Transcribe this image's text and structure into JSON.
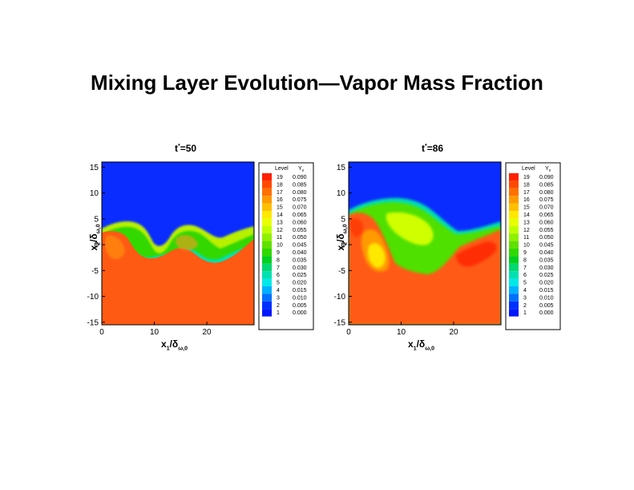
{
  "page_title": "Mixing Layer Evolution—Vapor Mass Fraction",
  "chart_data": [
    {
      "type": "heatmap",
      "title_main": "t",
      "title_sup": "*",
      "title_rest": "=50",
      "ylabel_main": "x",
      "ylabel_sub1": "2",
      "ylabel_mid": "/δ",
      "ylabel_sub2": "ω,0",
      "xlabel_main": "x",
      "xlabel_sub1": "1",
      "xlabel_mid": "/δ",
      "xlabel_sub2": "ω,0",
      "x_ticks": [
        "0",
        "10",
        "20"
      ],
      "y_ticks": [
        "15",
        "10",
        "5",
        "0",
        "-5",
        "-10",
        "-15"
      ],
      "xlim": [
        0,
        29
      ],
      "ylim": [
        -15.5,
        16
      ],
      "legend_header_level": "Level",
      "legend_header_value": "Y",
      "legend_header_value_sub": "v"
    },
    {
      "type": "heatmap",
      "title_main": "t",
      "title_sup": "*",
      "title_rest": "=86",
      "ylabel_main": "x",
      "ylabel_sub1": "2",
      "ylabel_mid": "/δ",
      "ylabel_sub2": "ω,0",
      "xlabel_main": "x",
      "xlabel_sub1": "1",
      "xlabel_mid": "/δ",
      "xlabel_sub2": "ω,0",
      "x_ticks": [
        "0",
        "10",
        "20"
      ],
      "y_ticks": [
        "15",
        "10",
        "5",
        "0",
        "-5",
        "-10",
        "-15"
      ],
      "xlim": [
        0,
        29
      ],
      "ylim": [
        -15.5,
        16
      ],
      "legend_header_level": "Level",
      "legend_header_value": "Y",
      "legend_header_value_sub": "v"
    }
  ],
  "legend_levels": [
    {
      "level": "19",
      "value": "0.090",
      "color": "#ff2000"
    },
    {
      "level": "18",
      "value": "0.085",
      "color": "#ff4a00"
    },
    {
      "level": "17",
      "value": "0.080",
      "color": "#ff7000"
    },
    {
      "level": "16",
      "value": "0.075",
      "color": "#ff9a00"
    },
    {
      "level": "15",
      "value": "0.070",
      "color": "#ffc000"
    },
    {
      "level": "14",
      "value": "0.065",
      "color": "#ffe800"
    },
    {
      "level": "13",
      "value": "0.060",
      "color": "#e8ff00"
    },
    {
      "level": "12",
      "value": "0.055",
      "color": "#c0ff00"
    },
    {
      "level": "11",
      "value": "0.050",
      "color": "#90f000"
    },
    {
      "level": "10",
      "value": "0.045",
      "color": "#60e000"
    },
    {
      "level": "9",
      "value": "0.040",
      "color": "#30d800"
    },
    {
      "level": "8",
      "value": "0.035",
      "color": "#00d020"
    },
    {
      "level": "7",
      "value": "0.030",
      "color": "#00d870"
    },
    {
      "level": "6",
      "value": "0.025",
      "color": "#00e0b0"
    },
    {
      "level": "5",
      "value": "0.020",
      "color": "#00e8e8"
    },
    {
      "level": "4",
      "value": "0.015",
      "color": "#00b0ff"
    },
    {
      "level": "3",
      "value": "0.010",
      "color": "#0070ff"
    },
    {
      "level": "2",
      "value": "0.005",
      "color": "#0030ff"
    },
    {
      "level": "1",
      "value": "0.000",
      "color": "#0018ff"
    }
  ],
  "colors": {
    "upper": "#0a2cff",
    "lower": "#ff5a14"
  }
}
